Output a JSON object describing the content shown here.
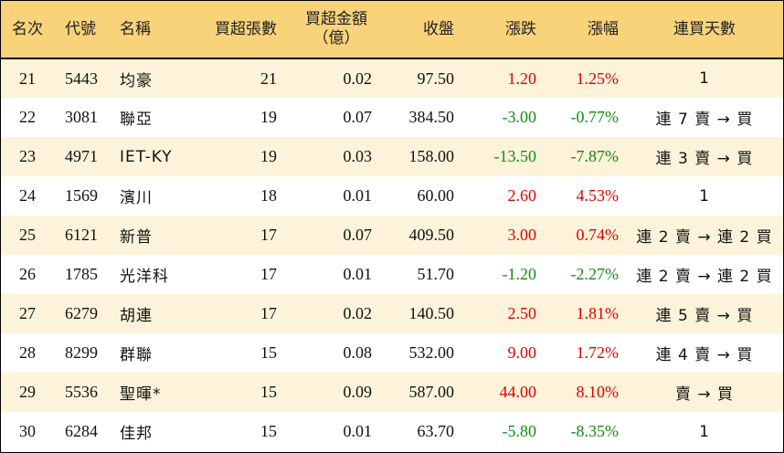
{
  "headers": {
    "rank": "名次",
    "code": "代號",
    "name": "名稱",
    "net_buy_lots": "買超張數",
    "net_buy_amount": "買超金額\n（億）",
    "close": "收盤",
    "change": "漲跌",
    "change_pct": "漲幅",
    "consecutive_days": "連買天數"
  },
  "colors": {
    "header_bg": "#f8d37a",
    "odd_row_bg": "#fdf3da",
    "even_row_bg": "#ffffff",
    "up": "#e00000",
    "down": "#138a13"
  },
  "rows": [
    {
      "rank": "21",
      "code": "5443",
      "name": "均豪",
      "lots": "21",
      "amount": "0.02",
      "close": "97.50",
      "change": "1.20",
      "pct": "1.25%",
      "dir": "up",
      "days": "1"
    },
    {
      "rank": "22",
      "code": "3081",
      "name": "聯亞",
      "lots": "19",
      "amount": "0.07",
      "close": "384.50",
      "change": "-3.00",
      "pct": "-0.77%",
      "dir": "down",
      "days": "連 7 賣 → 買"
    },
    {
      "rank": "23",
      "code": "4971",
      "name": "IET-KY",
      "lots": "19",
      "amount": "0.03",
      "close": "158.00",
      "change": "-13.50",
      "pct": "-7.87%",
      "dir": "down",
      "days": "連 3 賣 → 買"
    },
    {
      "rank": "24",
      "code": "1569",
      "name": "濱川",
      "lots": "18",
      "amount": "0.01",
      "close": "60.00",
      "change": "2.60",
      "pct": "4.53%",
      "dir": "up",
      "days": "1"
    },
    {
      "rank": "25",
      "code": "6121",
      "name": "新普",
      "lots": "17",
      "amount": "0.07",
      "close": "409.50",
      "change": "3.00",
      "pct": "0.74%",
      "dir": "up",
      "days": "連 2 賣 → 連 2 買"
    },
    {
      "rank": "26",
      "code": "1785",
      "name": "光洋科",
      "lots": "17",
      "amount": "0.01",
      "close": "51.70",
      "change": "-1.20",
      "pct": "-2.27%",
      "dir": "down",
      "days": "連 2 賣 → 連 2 買"
    },
    {
      "rank": "27",
      "code": "6279",
      "name": "胡連",
      "lots": "17",
      "amount": "0.02",
      "close": "140.50",
      "change": "2.50",
      "pct": "1.81%",
      "dir": "up",
      "days": "連 5 賣 → 買"
    },
    {
      "rank": "28",
      "code": "8299",
      "name": "群聯",
      "lots": "15",
      "amount": "0.08",
      "close": "532.00",
      "change": "9.00",
      "pct": "1.72%",
      "dir": "up",
      "days": "連 4 賣 → 買"
    },
    {
      "rank": "29",
      "code": "5536",
      "name": "聖暉*",
      "lots": "15",
      "amount": "0.09",
      "close": "587.00",
      "change": "44.00",
      "pct": "8.10%",
      "dir": "up",
      "days": "賣 → 買"
    },
    {
      "rank": "30",
      "code": "6284",
      "name": "佳邦",
      "lots": "15",
      "amount": "0.01",
      "close": "63.70",
      "change": "-5.80",
      "pct": "-8.35%",
      "dir": "down",
      "days": "1"
    }
  ]
}
